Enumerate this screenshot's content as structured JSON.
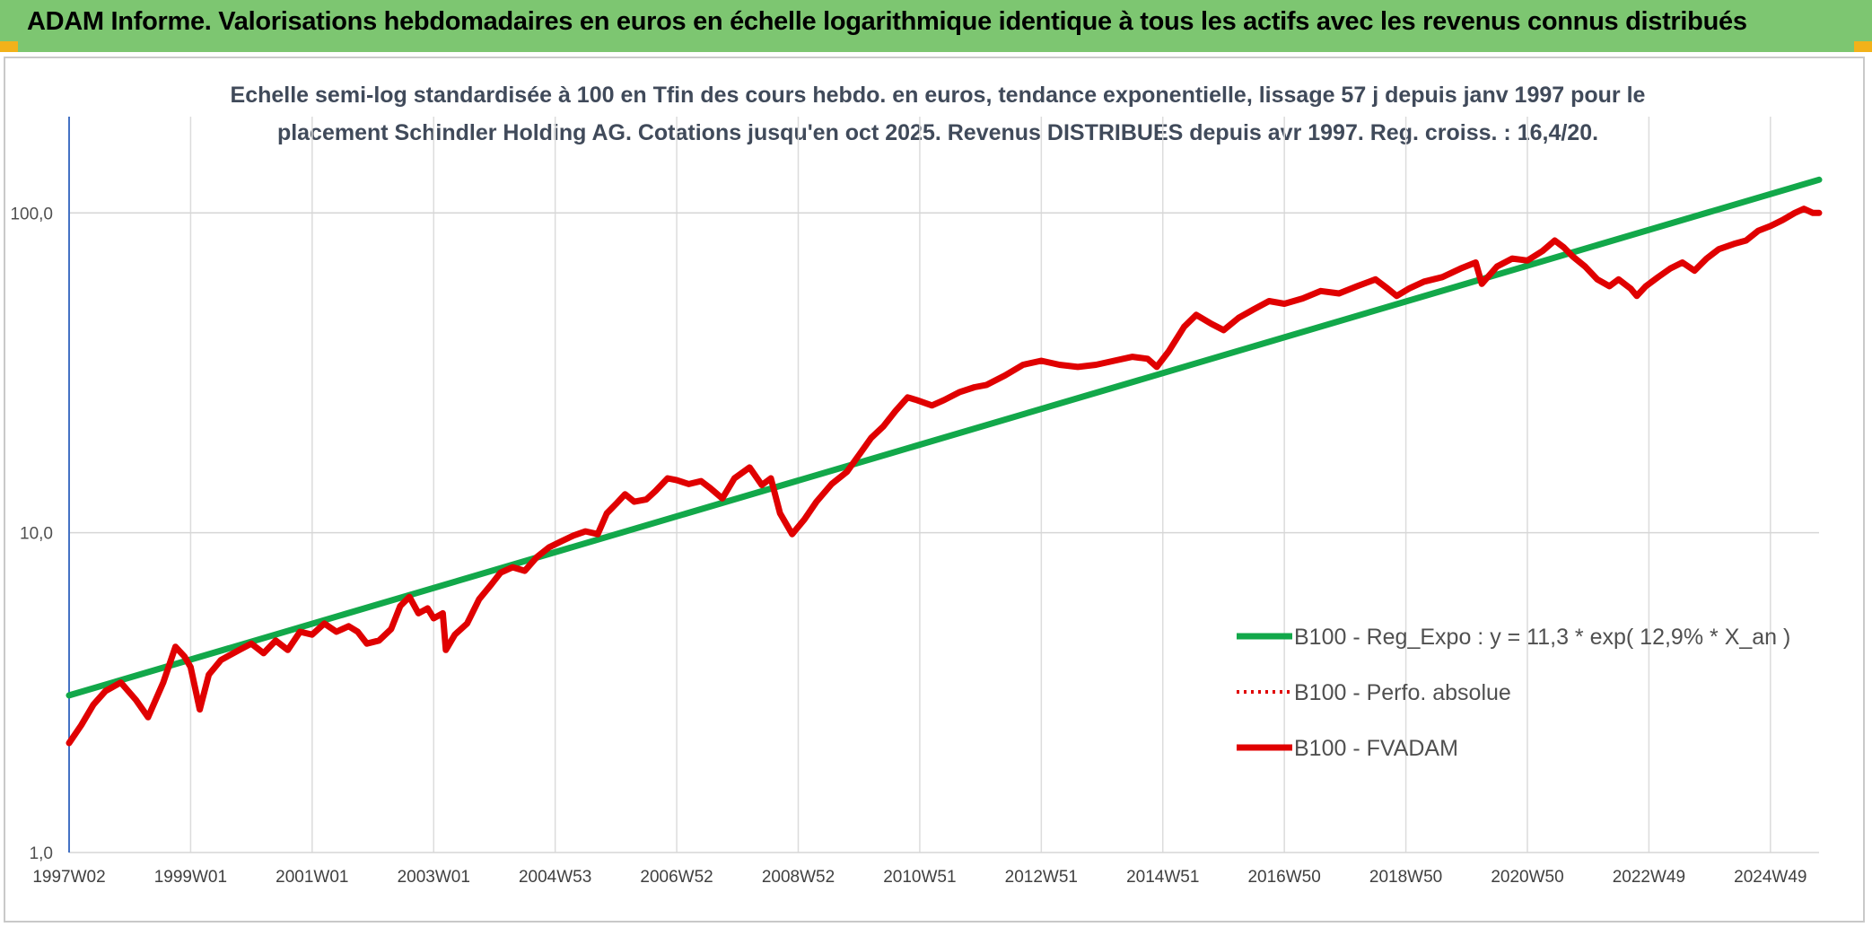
{
  "header": {
    "title": "ADAM Informe. Valorisations hebdomadaires en euros en échelle logarithmique identique à tous les actifs avec les revenus connus distribués",
    "background_color": "#7dc671"
  },
  "chart_data": {
    "type": "line",
    "subtitle_line1": "Echelle semi-log standardisée à 100 en Tfin des cours hebdo. en euros, tendance exponentielle, lissage 57 j depuis janv 1997 pour le",
    "subtitle_line2": "placement Schindler Holding AG. Cotations jusqu'en oct 2025. Revenus DISTRIBUES depuis avr 1997. Reg. croiss. : 16,4/20.",
    "y_scale": "log",
    "ylim": [
      1,
      200
    ],
    "y_ticks": [
      {
        "value": 1,
        "label": "1,0"
      },
      {
        "value": 10,
        "label": "10,0"
      },
      {
        "value": 100,
        "label": "100,0"
      }
    ],
    "xlim": [
      1997.0,
      2025.8
    ],
    "x_ticks": [
      {
        "value": 1997.0,
        "label": "1997W02"
      },
      {
        "value": 1999.0,
        "label": "1999W01"
      },
      {
        "value": 2001.0,
        "label": "2001W01"
      },
      {
        "value": 2003.0,
        "label": "2003W01"
      },
      {
        "value": 2005.0,
        "label": "2004W53"
      },
      {
        "value": 2007.0,
        "label": "2006W52"
      },
      {
        "value": 2009.0,
        "label": "2008W52"
      },
      {
        "value": 2011.0,
        "label": "2010W51"
      },
      {
        "value": 2013.0,
        "label": "2012W51"
      },
      {
        "value": 2015.0,
        "label": "2014W51"
      },
      {
        "value": 2017.0,
        "label": "2016W50"
      },
      {
        "value": 2019.0,
        "label": "2018W50"
      },
      {
        "value": 2021.0,
        "label": "2020W50"
      },
      {
        "value": 2023.0,
        "label": "2022W49"
      },
      {
        "value": 2025.0,
        "label": "2024W49"
      }
    ],
    "grid": "vertical-and-horizontal",
    "legend_position": "right",
    "series": [
      {
        "name": "B100 - Reg_Expo : y = 11,3 * exp( 12,9% *  X_an )",
        "color": "#12a84a",
        "style": "solid",
        "points": [
          [
            1997.0,
            3.1
          ],
          [
            2025.8,
            127
          ]
        ]
      },
      {
        "name": "B100 - Perfo. absolue",
        "color": "#e00000",
        "style": "dotted",
        "points": []
      },
      {
        "name": "B100 - FVADAM",
        "color": "#e00000",
        "style": "solid",
        "points": [
          [
            1997.0,
            2.2
          ],
          [
            1997.2,
            2.5
          ],
          [
            1997.4,
            2.9
          ],
          [
            1997.6,
            3.2
          ],
          [
            1997.85,
            3.4
          ],
          [
            1998.1,
            3.0
          ],
          [
            1998.3,
            2.65
          ],
          [
            1998.55,
            3.4
          ],
          [
            1998.75,
            4.4
          ],
          [
            1998.9,
            4.1
          ],
          [
            1999.0,
            3.8
          ],
          [
            1999.15,
            2.8
          ],
          [
            1999.3,
            3.6
          ],
          [
            1999.5,
            4.0
          ],
          [
            1999.8,
            4.3
          ],
          [
            2000.0,
            4.5
          ],
          [
            2000.2,
            4.2
          ],
          [
            2000.4,
            4.6
          ],
          [
            2000.6,
            4.3
          ],
          [
            2000.8,
            4.9
          ],
          [
            2001.0,
            4.8
          ],
          [
            2001.2,
            5.2
          ],
          [
            2001.4,
            4.9
          ],
          [
            2001.6,
            5.1
          ],
          [
            2001.75,
            4.9
          ],
          [
            2001.9,
            4.5
          ],
          [
            2002.1,
            4.6
          ],
          [
            2002.3,
            5.0
          ],
          [
            2002.45,
            5.9
          ],
          [
            2002.6,
            6.3
          ],
          [
            2002.75,
            5.6
          ],
          [
            2002.9,
            5.8
          ],
          [
            2003.0,
            5.4
          ],
          [
            2003.15,
            5.6
          ],
          [
            2003.2,
            4.3
          ],
          [
            2003.35,
            4.8
          ],
          [
            2003.55,
            5.2
          ],
          [
            2003.75,
            6.2
          ],
          [
            2003.95,
            6.9
          ],
          [
            2004.1,
            7.5
          ],
          [
            2004.3,
            7.8
          ],
          [
            2004.5,
            7.6
          ],
          [
            2004.7,
            8.4
          ],
          [
            2004.9,
            9.0
          ],
          [
            2005.1,
            9.4
          ],
          [
            2005.3,
            9.8
          ],
          [
            2005.5,
            10.1
          ],
          [
            2005.7,
            9.9
          ],
          [
            2005.85,
            11.5
          ],
          [
            2006.0,
            12.3
          ],
          [
            2006.15,
            13.2
          ],
          [
            2006.3,
            12.5
          ],
          [
            2006.5,
            12.7
          ],
          [
            2006.65,
            13.5
          ],
          [
            2006.85,
            14.8
          ],
          [
            2007.0,
            14.6
          ],
          [
            2007.2,
            14.2
          ],
          [
            2007.4,
            14.5
          ],
          [
            2007.55,
            13.8
          ],
          [
            2007.75,
            12.8
          ],
          [
            2007.95,
            14.8
          ],
          [
            2008.2,
            16.0
          ],
          [
            2008.4,
            14.1
          ],
          [
            2008.55,
            14.8
          ],
          [
            2008.7,
            11.5
          ],
          [
            2008.9,
            9.9
          ],
          [
            2009.1,
            11.0
          ],
          [
            2009.3,
            12.5
          ],
          [
            2009.55,
            14.2
          ],
          [
            2009.8,
            15.5
          ],
          [
            2010.0,
            17.5
          ],
          [
            2010.2,
            19.8
          ],
          [
            2010.4,
            21.5
          ],
          [
            2010.6,
            24.0
          ],
          [
            2010.8,
            26.5
          ],
          [
            2010.95,
            26.0
          ],
          [
            2011.2,
            25.0
          ],
          [
            2011.4,
            26.0
          ],
          [
            2011.65,
            27.5
          ],
          [
            2011.9,
            28.5
          ],
          [
            2012.1,
            29.0
          ],
          [
            2012.4,
            31.0
          ],
          [
            2012.7,
            33.5
          ],
          [
            2013.0,
            34.5
          ],
          [
            2013.3,
            33.5
          ],
          [
            2013.6,
            33.0
          ],
          [
            2013.9,
            33.5
          ],
          [
            2014.2,
            34.5
          ],
          [
            2014.5,
            35.5
          ],
          [
            2014.75,
            35.0
          ],
          [
            2014.9,
            33.0
          ],
          [
            2015.1,
            37.0
          ],
          [
            2015.35,
            44.0
          ],
          [
            2015.55,
            48.0
          ],
          [
            2015.8,
            45.0
          ],
          [
            2016.0,
            43.0
          ],
          [
            2016.25,
            47.0
          ],
          [
            2016.5,
            50.0
          ],
          [
            2016.75,
            53.0
          ],
          [
            2017.0,
            52.0
          ],
          [
            2017.3,
            54.0
          ],
          [
            2017.6,
            57.0
          ],
          [
            2017.9,
            56.0
          ],
          [
            2018.2,
            59.0
          ],
          [
            2018.5,
            62.0
          ],
          [
            2018.7,
            58.0
          ],
          [
            2018.85,
            55.0
          ],
          [
            2019.05,
            58.0
          ],
          [
            2019.3,
            61.0
          ],
          [
            2019.6,
            63.0
          ],
          [
            2019.9,
            67.0
          ],
          [
            2020.15,
            70.0
          ],
          [
            2020.25,
            60.0
          ],
          [
            2020.5,
            68.0
          ],
          [
            2020.75,
            72.0
          ],
          [
            2021.0,
            71.0
          ],
          [
            2021.25,
            76.0
          ],
          [
            2021.45,
            82.0
          ],
          [
            2021.6,
            78.0
          ],
          [
            2021.75,
            73.0
          ],
          [
            2021.95,
            68.0
          ],
          [
            2022.15,
            62.0
          ],
          [
            2022.35,
            59.0
          ],
          [
            2022.5,
            62.0
          ],
          [
            2022.7,
            58.0
          ],
          [
            2022.8,
            55.0
          ],
          [
            2022.95,
            59.0
          ],
          [
            2023.15,
            63.0
          ],
          [
            2023.35,
            67.0
          ],
          [
            2023.55,
            70.0
          ],
          [
            2023.75,
            66.0
          ],
          [
            2023.95,
            72.0
          ],
          [
            2024.15,
            77.0
          ],
          [
            2024.4,
            80.0
          ],
          [
            2024.6,
            82.0
          ],
          [
            2024.8,
            88.0
          ],
          [
            2025.0,
            91.0
          ],
          [
            2025.2,
            95.0
          ],
          [
            2025.4,
            100.0
          ],
          [
            2025.55,
            103.0
          ],
          [
            2025.7,
            100.0
          ],
          [
            2025.8,
            100.0
          ]
        ]
      }
    ]
  }
}
